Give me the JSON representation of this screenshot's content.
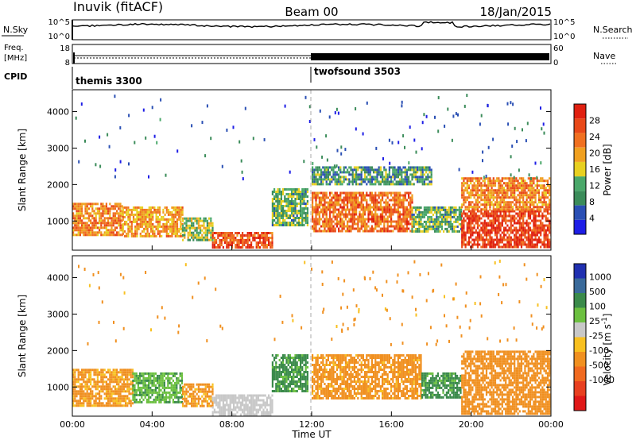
{
  "header": {
    "station": "Inuvik (fitACF)",
    "beam": "Beam 00",
    "date": "18/Jan/2015"
  },
  "top_panels": {
    "nsky_label": "N.Sky",
    "nsearch_label": "N.Search",
    "nsky_ticks": [
      "10^5",
      "10^0"
    ],
    "nsearch_ticks": [
      "10^5",
      "10^0"
    ],
    "freq_label": "Freq.",
    "freq_unit": "[MHz]",
    "freq_ticks": [
      "18",
      "8"
    ],
    "nave_label": "Nave",
    "nave_ticks": [
      "60",
      "0"
    ],
    "cpid_label": "CPID",
    "cpid_modes": [
      {
        "name": "themis 3300",
        "start_hour": 0
      },
      {
        "name": "twofsound 3503",
        "start_hour": 12
      }
    ]
  },
  "colors": {
    "power": [
      "#1e1ee6",
      "#2a4fb4",
      "#3b8c5a",
      "#4aa86a",
      "#e8d020",
      "#f0a020",
      "#f07020",
      "#e84818",
      "#e02010"
    ],
    "velocity": [
      "#2030b0",
      "#3a6a9a",
      "#3a8a4a",
      "#6cc040",
      "#c8c8c8",
      "#f8c020",
      "#f09020",
      "#f06a20",
      "#e84020",
      "#e01818"
    ]
  },
  "chart_data": [
    {
      "type": "heatmap",
      "name": "power",
      "title": "",
      "xlabel": "",
      "ylabel": "Slant Range [km]",
      "x_ticks": [
        "00:00",
        "04:00",
        "08:00",
        "12:00",
        "16:00",
        "20:00",
        "00:00"
      ],
      "xlim": [
        0,
        24
      ],
      "ylim": [
        200,
        4600
      ],
      "y_ticks": [
        1000,
        2000,
        3000,
        4000
      ],
      "colorbar": {
        "label": "Power [dB]",
        "ticks": [
          4,
          8,
          12,
          16,
          20,
          24,
          28
        ],
        "range": [
          0,
          32
        ]
      },
      "regions": [
        {
          "x": [
            0,
            2.5
          ],
          "y": [
            600,
            1500
          ],
          "value": 22
        },
        {
          "x": [
            2.5,
            5.5
          ],
          "y": [
            600,
            1400
          ],
          "value": 20
        },
        {
          "x": [
            5.5,
            7
          ],
          "y": [
            500,
            1100
          ],
          "value": 14
        },
        {
          "x": [
            7,
            10
          ],
          "y": [
            250,
            700
          ],
          "value": 26
        },
        {
          "x": [
            10,
            11.8
          ],
          "y": [
            900,
            1900
          ],
          "value": 12
        },
        {
          "x": [
            12,
            17
          ],
          "y": [
            700,
            1800
          ],
          "value": 24
        },
        {
          "x": [
            17,
            19.5
          ],
          "y": [
            700,
            1400
          ],
          "value": 12
        },
        {
          "x": [
            19.5,
            24
          ],
          "y": [
            300,
            1300
          ],
          "value": 28
        },
        {
          "x": [
            19.5,
            24
          ],
          "y": [
            1300,
            2200
          ],
          "value": 22
        },
        {
          "x": [
            12,
            18
          ],
          "y": [
            2000,
            2500
          ],
          "value": 10
        }
      ]
    },
    {
      "type": "heatmap",
      "name": "velocity",
      "title": "",
      "xlabel": "Time UT",
      "ylabel": "Slant Range [km]",
      "x_ticks": [
        "00:00",
        "04:00",
        "08:00",
        "12:00",
        "16:00",
        "20:00",
        "00:00"
      ],
      "xlim": [
        0,
        24
      ],
      "ylim": [
        200,
        4600
      ],
      "y_ticks": [
        1000,
        2000,
        3000,
        4000
      ],
      "colorbar": {
        "label": "Velocity [m s^-1]",
        "ticks": [
          1000,
          500,
          100,
          25,
          -25,
          -100,
          -500,
          -1000
        ]
      },
      "regions": [
        {
          "x": [
            0,
            3
          ],
          "y": [
            500,
            1500
          ],
          "value": -150
        },
        {
          "x": [
            3,
            5.5
          ],
          "y": [
            600,
            1400
          ],
          "value": 80
        },
        {
          "x": [
            5.5,
            7
          ],
          "y": [
            500,
            1100
          ],
          "value": -150
        },
        {
          "x": [
            7,
            10
          ],
          "y": [
            250,
            800
          ],
          "value": 0
        },
        {
          "x": [
            10,
            11.8
          ],
          "y": [
            900,
            1900
          ],
          "value": 150
        },
        {
          "x": [
            12,
            17.5
          ],
          "y": [
            700,
            1900
          ],
          "value": -200
        },
        {
          "x": [
            17.5,
            19.5
          ],
          "y": [
            700,
            1400
          ],
          "value": 150
        },
        {
          "x": [
            19.5,
            24
          ],
          "y": [
            300,
            2000
          ],
          "value": -300
        }
      ]
    }
  ]
}
